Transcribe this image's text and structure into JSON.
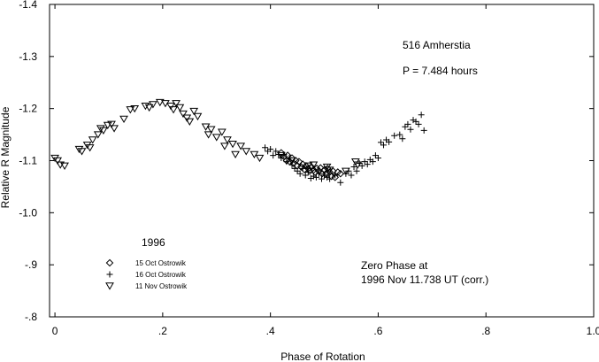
{
  "chart_data": {
    "type": "scatter",
    "title": "",
    "xlabel": "Phase of Rotation",
    "ylabel": "Relative R Magnitude",
    "xlim": [
      -0.01,
      1.0
    ],
    "ylim": [
      -1.4,
      -0.8
    ],
    "x_ticks": [
      0,
      0.2,
      0.4,
      0.6,
      0.8,
      1.0
    ],
    "x_tick_labels": [
      "0",
      ".2",
      ".4",
      ".6",
      ".8",
      "1.0"
    ],
    "y_ticks": [
      -1.4,
      -1.3,
      -1.2,
      -1.1,
      -1.0,
      -0.9,
      -0.8
    ],
    "y_tick_labels": [
      "-1.4",
      "-1.3",
      "-1.2",
      "-1.1",
      "-1.0",
      "-.9",
      "-.8"
    ],
    "grid": false,
    "annotations": {
      "object": "516 Amherstia",
      "period": "P = 7.484 hours",
      "zero_phase_1": "Zero Phase at",
      "zero_phase_2": "1996 Nov 11.738 UT (corr.)"
    },
    "legend": {
      "title": "1996",
      "placement": "lower-left"
    },
    "series": [
      {
        "name": "15 Oct Ostrowik",
        "marker": "diamond",
        "points": [
          [
            0.42,
            -1.115
          ],
          [
            0.425,
            -1.108
          ],
          [
            0.43,
            -1.1
          ],
          [
            0.432,
            -1.11
          ],
          [
            0.436,
            -1.098
          ],
          [
            0.44,
            -1.105
          ],
          [
            0.443,
            -1.095
          ],
          [
            0.447,
            -1.1
          ],
          [
            0.45,
            -1.09
          ],
          [
            0.453,
            -1.098
          ],
          [
            0.457,
            -1.088
          ],
          [
            0.46,
            -1.093
          ],
          [
            0.463,
            -1.083
          ],
          [
            0.466,
            -1.09
          ],
          [
            0.47,
            -1.085
          ],
          [
            0.473,
            -1.08
          ],
          [
            0.476,
            -1.088
          ],
          [
            0.48,
            -1.082
          ],
          [
            0.483,
            -1.078
          ],
          [
            0.486,
            -1.085
          ],
          [
            0.49,
            -1.08
          ],
          [
            0.493,
            -1.086
          ],
          [
            0.496,
            -1.075
          ],
          [
            0.5,
            -1.082
          ],
          [
            0.503,
            -1.075
          ],
          [
            0.506,
            -1.085
          ],
          [
            0.51,
            -1.078
          ],
          [
            0.513,
            -1.07
          ],
          [
            0.516,
            -1.08
          ],
          [
            0.52,
            -1.068
          ],
          [
            0.525,
            -1.078
          ],
          [
            0.53,
            -1.075
          ]
        ]
      },
      {
        "name": "16 Oct Ostrowik",
        "marker": "plus",
        "points": [
          [
            0.39,
            -1.125
          ],
          [
            0.395,
            -1.118
          ],
          [
            0.4,
            -1.122
          ],
          [
            0.405,
            -1.11
          ],
          [
            0.41,
            -1.118
          ],
          [
            0.415,
            -1.112
          ],
          [
            0.42,
            -1.105
          ],
          [
            0.425,
            -1.112
          ],
          [
            0.43,
            -1.098
          ],
          [
            0.435,
            -1.105
          ],
          [
            0.44,
            -1.092
          ],
          [
            0.445,
            -1.085
          ],
          [
            0.45,
            -1.08
          ],
          [
            0.455,
            -1.075
          ],
          [
            0.46,
            -1.085
          ],
          [
            0.465,
            -1.072
          ],
          [
            0.47,
            -1.078
          ],
          [
            0.475,
            -1.066
          ],
          [
            0.48,
            -1.07
          ],
          [
            0.485,
            -1.068
          ],
          [
            0.49,
            -1.075
          ],
          [
            0.495,
            -1.065
          ],
          [
            0.5,
            -1.072
          ],
          [
            0.505,
            -1.068
          ],
          [
            0.51,
            -1.065
          ],
          [
            0.52,
            -1.072
          ],
          [
            0.53,
            -1.058
          ],
          [
            0.54,
            -1.075
          ],
          [
            0.545,
            -1.08
          ],
          [
            0.55,
            -1.072
          ],
          [
            0.555,
            -1.088
          ],
          [
            0.56,
            -1.08
          ],
          [
            0.565,
            -1.095
          ],
          [
            0.57,
            -1.09
          ],
          [
            0.575,
            -1.098
          ],
          [
            0.58,
            -1.093
          ],
          [
            0.585,
            -1.102
          ],
          [
            0.59,
            -1.098
          ],
          [
            0.595,
            -1.11
          ],
          [
            0.6,
            -1.105
          ],
          [
            0.605,
            -1.135
          ],
          [
            0.61,
            -1.13
          ],
          [
            0.615,
            -1.14
          ],
          [
            0.62,
            -1.136
          ],
          [
            0.63,
            -1.148
          ],
          [
            0.64,
            -1.15
          ],
          [
            0.645,
            -1.142
          ],
          [
            0.65,
            -1.165
          ],
          [
            0.655,
            -1.17
          ],
          [
            0.66,
            -1.16
          ],
          [
            0.665,
            -1.178
          ],
          [
            0.67,
            -1.175
          ],
          [
            0.675,
            -1.17
          ],
          [
            0.68,
            -1.188
          ],
          [
            0.685,
            -1.158
          ]
        ]
      },
      {
        "name": "11 Nov Ostrowik",
        "marker": "triangle-down",
        "points": [
          [
            0.0,
            -1.105
          ],
          [
            0.005,
            -1.1
          ],
          [
            0.01,
            -1.092
          ],
          [
            0.018,
            -1.09
          ],
          [
            0.045,
            -1.122
          ],
          [
            0.05,
            -1.118
          ],
          [
            0.06,
            -1.13
          ],
          [
            0.065,
            -1.125
          ],
          [
            0.07,
            -1.14
          ],
          [
            0.08,
            -1.15
          ],
          [
            0.085,
            -1.162
          ],
          [
            0.09,
            -1.158
          ],
          [
            0.098,
            -1.168
          ],
          [
            0.105,
            -1.17
          ],
          [
            0.11,
            -1.162
          ],
          [
            0.128,
            -1.18
          ],
          [
            0.14,
            -1.198
          ],
          [
            0.148,
            -1.2
          ],
          [
            0.168,
            -1.205
          ],
          [
            0.175,
            -1.202
          ],
          [
            0.182,
            -1.208
          ],
          [
            0.195,
            -1.212
          ],
          [
            0.205,
            -1.21
          ],
          [
            0.215,
            -1.205
          ],
          [
            0.22,
            -1.198
          ],
          [
            0.225,
            -1.21
          ],
          [
            0.232,
            -1.202
          ],
          [
            0.238,
            -1.19
          ],
          [
            0.245,
            -1.182
          ],
          [
            0.25,
            -1.175
          ],
          [
            0.258,
            -1.195
          ],
          [
            0.265,
            -1.185
          ],
          [
            0.28,
            -1.165
          ],
          [
            0.285,
            -1.15
          ],
          [
            0.29,
            -1.16
          ],
          [
            0.3,
            -1.145
          ],
          [
            0.31,
            -1.155
          ],
          [
            0.315,
            -1.128
          ],
          [
            0.32,
            -1.14
          ],
          [
            0.33,
            -1.132
          ],
          [
            0.335,
            -1.112
          ],
          [
            0.345,
            -1.128
          ],
          [
            0.355,
            -1.118
          ],
          [
            0.37,
            -1.112
          ],
          [
            0.38,
            -1.105
          ],
          [
            0.42,
            -1.11
          ],
          [
            0.44,
            -1.1
          ],
          [
            0.47,
            -1.09
          ],
          [
            0.48,
            -1.092
          ],
          [
            0.505,
            -1.088
          ],
          [
            0.51,
            -1.082
          ],
          [
            0.54,
            -1.08
          ],
          [
            0.558,
            -1.098
          ],
          [
            0.562,
            -1.092
          ]
        ]
      }
    ]
  }
}
